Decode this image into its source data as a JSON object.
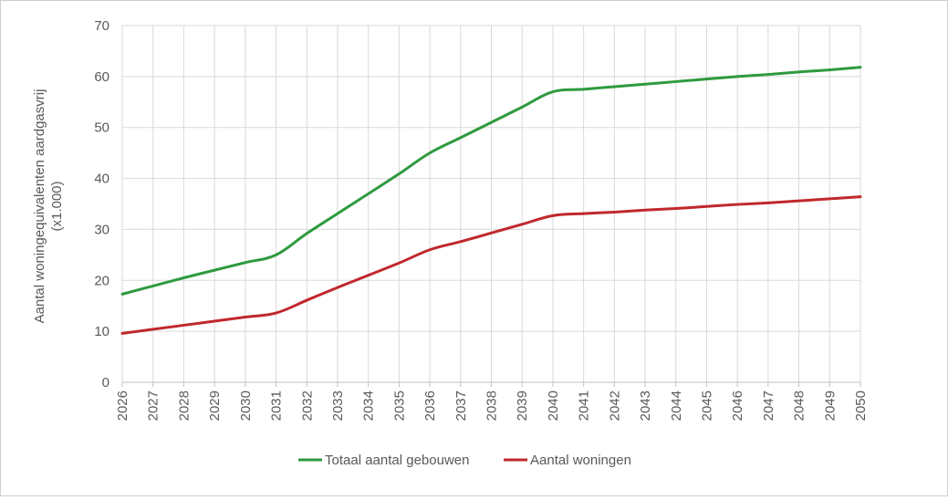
{
  "chart_data": {
    "type": "line",
    "title": "",
    "xlabel": "",
    "ylabel_lines": [
      "Aantal woningequivalenten aardgasvrij",
      "(x1.000)"
    ],
    "ylim": [
      0,
      70
    ],
    "y_ticks": [
      0,
      10,
      20,
      30,
      40,
      50,
      60,
      70
    ],
    "categories": [
      "2026",
      "2027",
      "2028",
      "2029",
      "2030",
      "2031",
      "2032",
      "2033",
      "2034",
      "2035",
      "2036",
      "2037",
      "2038",
      "2039",
      "2040",
      "2041",
      "2042",
      "2043",
      "2044",
      "2045",
      "2046",
      "2047",
      "2048",
      "2049",
      "2050"
    ],
    "grid": true,
    "legend_position": "bottom",
    "series": [
      {
        "name": "Totaal aantal gebouwen",
        "color": "#2e9a3f",
        "values": [
          17.3,
          18.9,
          20.5,
          22.0,
          23.5,
          25.0,
          29.2,
          33.1,
          37.0,
          40.9,
          45.0,
          48.0,
          51.0,
          54.0,
          57.0,
          57.5,
          58.0,
          58.5,
          59.0,
          59.5,
          60.0,
          60.4,
          60.9,
          61.3,
          61.8
        ]
      },
      {
        "name": "Aantal woningen",
        "color": "#c0282c",
        "values": [
          9.6,
          10.4,
          11.2,
          12.0,
          12.8,
          13.6,
          16.1,
          18.6,
          21.0,
          23.4,
          26.0,
          27.6,
          29.3,
          31.0,
          32.7,
          33.1,
          33.4,
          33.8,
          34.1,
          34.5,
          34.9,
          35.2,
          35.6,
          36.0,
          36.4
        ]
      }
    ]
  }
}
